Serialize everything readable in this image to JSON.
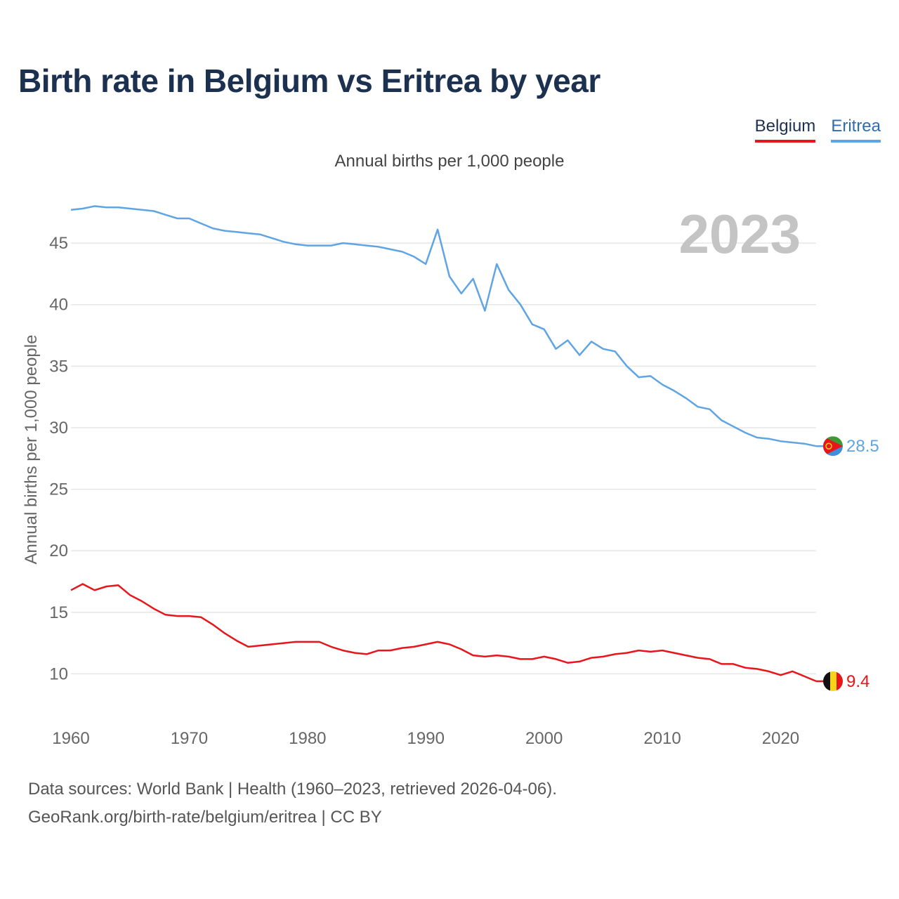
{
  "title": "Birth rate in Belgium vs Eritrea by year",
  "legend": {
    "belgium": "Belgium",
    "eritrea": "Eritrea"
  },
  "year_watermark": "2023",
  "footer": {
    "line1": "Data sources: World Bank | Health (1960–2023, retrieved 2026-04-06).",
    "line2": "GeoRank.org/birth-rate/belgium/eritrea | CC BY"
  },
  "colors": {
    "belgium": "#e8151b",
    "eritrea": "#5fa4e3",
    "title": "#1c3150",
    "grid": "#e6e6e6",
    "watermark": "#c4c4c4"
  },
  "chart_data": {
    "type": "line",
    "title": "Birth rate in Belgium vs Eritrea by year",
    "subtitle": "Annual births per 1,000 people",
    "xlabel": "",
    "ylabel": "Annual births per 1,000 people",
    "xlim": [
      1960,
      2023
    ],
    "ylim": [
      7,
      49
    ],
    "xticks": [
      1960,
      1970,
      1980,
      1990,
      2000,
      2010,
      2020
    ],
    "yticks": [
      10,
      15,
      20,
      25,
      30,
      35,
      40,
      45
    ],
    "grid": true,
    "legend_position": "top-right",
    "x": [
      1960,
      1961,
      1962,
      1963,
      1964,
      1965,
      1966,
      1967,
      1968,
      1969,
      1970,
      1971,
      1972,
      1973,
      1974,
      1975,
      1976,
      1977,
      1978,
      1979,
      1980,
      1981,
      1982,
      1983,
      1984,
      1985,
      1986,
      1987,
      1988,
      1989,
      1990,
      1991,
      1992,
      1993,
      1994,
      1995,
      1996,
      1997,
      1998,
      1999,
      2000,
      2001,
      2002,
      2003,
      2004,
      2005,
      2006,
      2007,
      2008,
      2009,
      2010,
      2011,
      2012,
      2013,
      2014,
      2015,
      2016,
      2017,
      2018,
      2019,
      2020,
      2021,
      2022,
      2023
    ],
    "series": [
      {
        "name": "Belgium",
        "end_label": "9.4",
        "values": [
          16.8,
          17.3,
          16.8,
          17.1,
          17.2,
          16.4,
          15.9,
          15.3,
          14.8,
          14.7,
          14.7,
          14.6,
          14.0,
          13.3,
          12.7,
          12.2,
          12.3,
          12.4,
          12.5,
          12.6,
          12.6,
          12.6,
          12.2,
          11.9,
          11.7,
          11.6,
          11.9,
          11.9,
          12.1,
          12.2,
          12.4,
          12.6,
          12.4,
          12.0,
          11.5,
          11.4,
          11.5,
          11.4,
          11.2,
          11.2,
          11.4,
          11.2,
          10.9,
          11.0,
          11.3,
          11.4,
          11.6,
          11.7,
          11.9,
          11.8,
          11.9,
          11.7,
          11.5,
          11.3,
          11.2,
          10.8,
          10.8,
          10.5,
          10.4,
          10.2,
          9.9,
          10.2,
          9.8,
          9.4
        ]
      },
      {
        "name": "Eritrea",
        "end_label": "28.5",
        "values": [
          47.7,
          47.8,
          48.0,
          47.9,
          47.9,
          47.8,
          47.7,
          47.6,
          47.3,
          47.0,
          47.0,
          46.6,
          46.2,
          46.0,
          45.9,
          45.8,
          45.7,
          45.4,
          45.1,
          44.9,
          44.8,
          44.8,
          44.8,
          45.0,
          44.9,
          44.8,
          44.7,
          44.5,
          44.3,
          43.9,
          43.3,
          46.1,
          42.3,
          40.9,
          42.1,
          39.5,
          43.3,
          41.2,
          40.0,
          38.4,
          38.0,
          36.4,
          37.1,
          35.9,
          37.0,
          36.4,
          36.2,
          35.0,
          34.1,
          34.2,
          33.5,
          33.0,
          32.4,
          31.7,
          31.5,
          30.6,
          30.1,
          29.6,
          29.2,
          29.1,
          28.9,
          28.8,
          28.7,
          28.5
        ]
      }
    ]
  }
}
